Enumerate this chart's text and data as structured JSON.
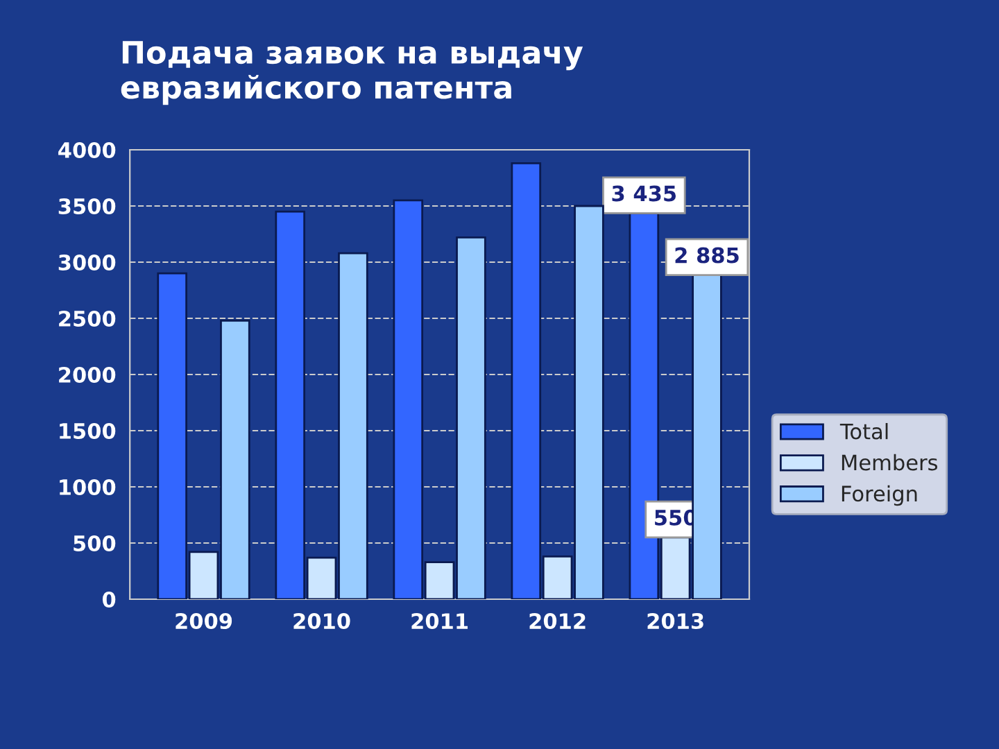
{
  "chart_data": {
    "type": "bar",
    "title": "Подача заявок на выдачу\nевразийского патента",
    "categories": [
      "2009",
      "2010",
      "2011",
      "2012",
      "2013"
    ],
    "series": [
      {
        "name": "Total",
        "color": "#3366ff",
        "values": [
          2900,
          3450,
          3550,
          3880,
          3435
        ],
        "value_labels": [
          null,
          null,
          null,
          null,
          "3 435"
        ]
      },
      {
        "name": "Members",
        "color": "#cce6ff",
        "values": [
          420,
          370,
          330,
          380,
          550
        ],
        "value_labels": [
          null,
          null,
          null,
          null,
          "550"
        ]
      },
      {
        "name": "Foreign",
        "color": "#99ccff",
        "values": [
          2480,
          3080,
          3220,
          3500,
          2885
        ],
        "value_labels": [
          null,
          null,
          null,
          null,
          "2 885"
        ]
      }
    ],
    "ylim": [
      0,
      4000
    ],
    "yticks": [
      0,
      500,
      1000,
      1500,
      2000,
      2500,
      3000,
      3500,
      4000
    ],
    "grid": "y",
    "legend": "right"
  }
}
